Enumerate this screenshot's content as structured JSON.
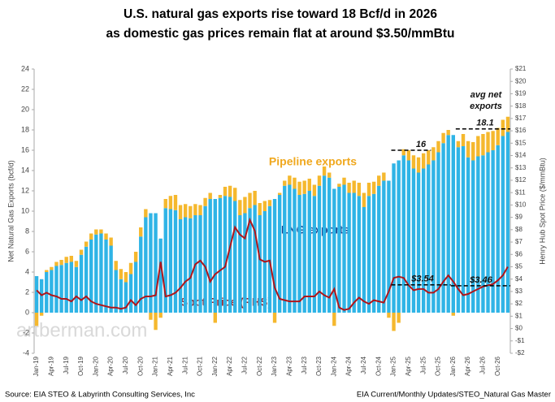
{
  "chart_data": {
    "type": "bar_line",
    "title": [
      "U.S. natural gas exports rise toward 18 Bcf/d in 2026",
      "as domestic gas prices remain flat at around $3.50/mmBtu"
    ],
    "y_label": "Net Natural Gas Exports (bcf/d)",
    "y2_label": "Henry Hub Spot Price ($/mmBtu)",
    "categories": [
      "Jan-19",
      null,
      null,
      "Apr-19",
      null,
      null,
      "Jul-19",
      null,
      null,
      "Oct-19",
      null,
      null,
      "Jan-20",
      null,
      null,
      "Apr-20",
      null,
      null,
      "Jul-20",
      null,
      null,
      "Oct-20",
      null,
      null,
      "Jan-21",
      null,
      null,
      "Apr-21",
      null,
      null,
      "Jul-21",
      null,
      null,
      "Oct-21",
      null,
      null,
      "Jan-22",
      null,
      null,
      "Apr-22",
      null,
      null,
      "Jul-22",
      null,
      null,
      "Oct-22",
      null,
      null,
      "Jan-23",
      null,
      null,
      "Apr-23",
      null,
      null,
      "Jul-23",
      null,
      null,
      "Oct-23",
      null,
      null,
      "Jan-24",
      null,
      null,
      "Apr-24",
      null,
      null,
      "Jul-24",
      null,
      null,
      "Oct-24",
      null,
      null,
      "Jan-25",
      null,
      null,
      "Apr-25",
      null,
      null,
      "Jul-25",
      null,
      null,
      "Oct-25",
      null,
      null,
      "Jan-26",
      null,
      null,
      "Apr-26",
      null,
      null,
      "Jul-26",
      null,
      null,
      "Oct-26",
      null,
      null
    ],
    "series": [
      {
        "name": "LNG exports",
        "color": "#2fb4e6",
        "values": [
          3.6,
          3.3,
          4.0,
          4.2,
          4.6,
          4.7,
          4.9,
          5.0,
          4.5,
          5.7,
          6.5,
          7.2,
          7.7,
          7.8,
          7.2,
          6.6,
          4.2,
          3.3,
          3.0,
          3.8,
          5.0,
          7.5,
          9.4,
          9.8,
          9.8,
          7.3,
          10.3,
          10.2,
          10.1,
          9.2,
          9.4,
          9.3,
          9.6,
          9.6,
          10.5,
          11.2,
          11.2,
          11.3,
          11.5,
          11.4,
          11.0,
          9.6,
          9.8,
          10.3,
          10.6,
          9.6,
          10.0,
          10.5,
          11.2,
          11.6,
          12.5,
          12.6,
          12.2,
          11.6,
          11.7,
          12.0,
          11.5,
          12.5,
          13.5,
          13.3,
          12.2,
          12.4,
          12.6,
          11.8,
          11.8,
          11.5,
          10.4,
          11.5,
          11.7,
          12.5,
          13.0,
          13.0,
          14.7,
          15.0,
          15.5,
          15.0,
          14.2,
          13.8,
          14.2,
          14.6,
          15.0,
          15.8,
          16.7,
          17.5,
          17.5,
          16.3,
          16.4,
          15.3,
          15.0,
          15.4,
          15.5,
          15.8,
          16.0,
          16.5,
          17.4,
          17.8
        ]
      },
      {
        "name": "Pipeline exports",
        "color": "#f5b82e",
        "values": [
          -1.3,
          -0.3,
          0.2,
          0.3,
          0.4,
          0.5,
          0.6,
          0.6,
          0.6,
          0.5,
          0.5,
          0.6,
          0.5,
          0.4,
          0.6,
          0.8,
          0.9,
          1.0,
          1.0,
          1.1,
          1.0,
          0.9,
          0.8,
          -0.7,
          -1.7,
          -0.5,
          0.9,
          1.3,
          1.5,
          1.4,
          1.3,
          1.2,
          1.1,
          1.0,
          0.8,
          0.6,
          -1.0,
          0.3,
          0.9,
          1.1,
          1.3,
          1.5,
          1.6,
          1.5,
          1.4,
          1.2,
          1.0,
          0.6,
          -1.0,
          0.2,
          0.5,
          0.9,
          1.1,
          1.3,
          1.3,
          1.2,
          1.1,
          1.0,
          0.9,
          0.5,
          -1.3,
          0.3,
          0.7,
          1.0,
          1.2,
          1.3,
          1.4,
          1.3,
          1.2,
          1.0,
          0.8,
          -0.5,
          -1.8,
          -1.0,
          0.6,
          1.0,
          1.3,
          1.5,
          1.5,
          1.4,
          1.3,
          1.1,
          1.0,
          0.5,
          -0.3,
          0.6,
          1.2,
          1.6,
          1.8,
          2.0,
          2.1,
          2.0,
          1.9,
          1.7,
          1.6,
          1.5
        ]
      },
      {
        "name": "Spot Price (RHS)",
        "color": "#b0151a",
        "axis": "y2",
        "values": [
          3.1,
          2.7,
          2.9,
          2.7,
          2.6,
          2.4,
          2.4,
          2.2,
          2.6,
          2.3,
          2.6,
          2.2,
          2.0,
          1.9,
          1.8,
          1.7,
          1.7,
          1.6,
          1.7,
          2.3,
          1.9,
          2.4,
          2.6,
          2.6,
          2.7,
          5.4,
          2.6,
          2.7,
          2.9,
          3.3,
          3.8,
          4.1,
          5.2,
          5.5,
          5.0,
          3.8,
          4.4,
          4.7,
          5.0,
          6.6,
          8.2,
          7.6,
          7.3,
          8.8,
          7.9,
          5.6,
          5.4,
          5.5,
          3.3,
          2.4,
          2.3,
          2.2,
          2.2,
          2.2,
          2.6,
          2.6,
          2.6,
          3.0,
          2.7,
          2.5,
          3.2,
          1.7,
          1.5,
          1.6,
          2.1,
          2.5,
          2.2,
          2.0,
          2.3,
          2.2,
          2.1,
          3.0,
          4.1,
          4.2,
          4.1,
          3.5,
          3.1,
          3.2,
          3.2,
          2.9,
          2.9,
          3.2,
          3.8,
          4.3,
          3.8,
          3.2,
          2.7,
          2.8,
          3.0,
          3.2,
          3.4,
          3.5,
          3.6,
          3.9,
          4.3,
          5.0
        ]
      }
    ],
    "ylim": [
      -4,
      24
    ],
    "yticks": [
      -4,
      -2,
      0,
      2,
      4,
      6,
      8,
      10,
      12,
      14,
      16,
      18,
      20,
      22,
      24
    ],
    "y2lim": [
      -2,
      21
    ],
    "y2ticks": [
      {
        "value": -2,
        "label": "-$2"
      },
      {
        "value": -1,
        "label": "-$1"
      },
      {
        "value": 0,
        "label": "$0"
      },
      {
        "value": 1,
        "label": "$1"
      },
      {
        "value": 2,
        "label": "$2"
      },
      {
        "value": 3,
        "label": "$3"
      },
      {
        "value": 4,
        "label": "$4"
      },
      {
        "value": 5,
        "label": "$5"
      },
      {
        "value": 6,
        "label": "$6"
      },
      {
        "value": 7,
        "label": "$7"
      },
      {
        "value": 8,
        "label": "$8"
      },
      {
        "value": 9,
        "label": "$9"
      },
      {
        "value": 10,
        "label": "$10"
      },
      {
        "value": 11,
        "label": "$11"
      },
      {
        "value": 12,
        "label": "$12"
      },
      {
        "value": 13,
        "label": "$13"
      },
      {
        "value": 14,
        "label": "$14"
      },
      {
        "value": 15,
        "label": "$15"
      },
      {
        "value": 16,
        "label": "$16"
      },
      {
        "value": 17,
        "label": "$17"
      },
      {
        "value": 18,
        "label": "$18"
      },
      {
        "value": 19,
        "label": "$19"
      },
      {
        "value": 20,
        "label": "$20"
      },
      {
        "value": 21,
        "label": "$21"
      }
    ],
    "reference_lines": [
      {
        "value": 16,
        "axis": "y"
      },
      {
        "value": 18.1,
        "axis": "y"
      },
      {
        "value": 3.54,
        "label": "$3.54",
        "axis": "y2"
      },
      {
        "value": 3.46,
        "label": "$3.46",
        "axis": "y2"
      }
    ],
    "avg_label": [
      "avg net",
      "exports"
    ],
    "watermark": "artberman.com",
    "source_left": "Source: EIA STEO & Labyrinth Consulting Services, Inc",
    "source_right": "EIA Current/Monthly Updates/STEO_Natural Gas Master"
  }
}
